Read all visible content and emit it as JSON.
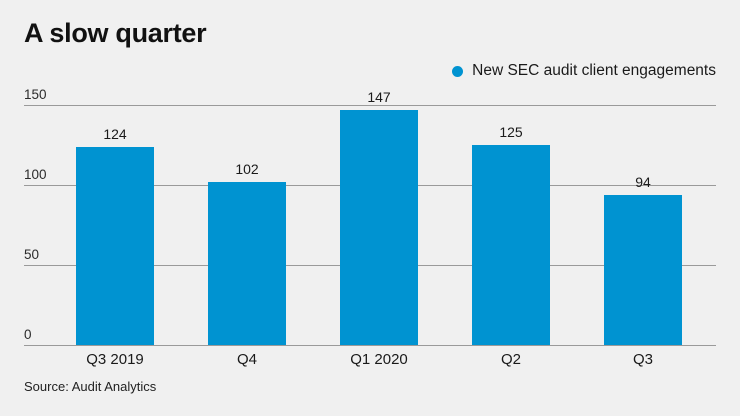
{
  "title": "A slow quarter",
  "legend": {
    "label": "New SEC audit client engagements"
  },
  "source": "Source: Audit Analytics",
  "colors": {
    "background": "#f0f0f0",
    "bar": "#0093d1",
    "grid": "#9a9a9a",
    "text": "#1a1a1a"
  },
  "chart_data": {
    "type": "bar",
    "title": "A slow quarter",
    "categories": [
      "Q3 2019",
      "Q4",
      "Q1 2020",
      "Q2",
      "Q3"
    ],
    "values": [
      124,
      102,
      147,
      125,
      94
    ],
    "series_name": "New SEC audit client engagements",
    "xlabel": "",
    "ylabel": "",
    "ylim": [
      0,
      150
    ],
    "yticks": [
      0,
      50,
      100,
      150
    ],
    "grid": true,
    "data_labels": true,
    "legend_position": "top-right",
    "source": "Source: Audit Analytics"
  }
}
